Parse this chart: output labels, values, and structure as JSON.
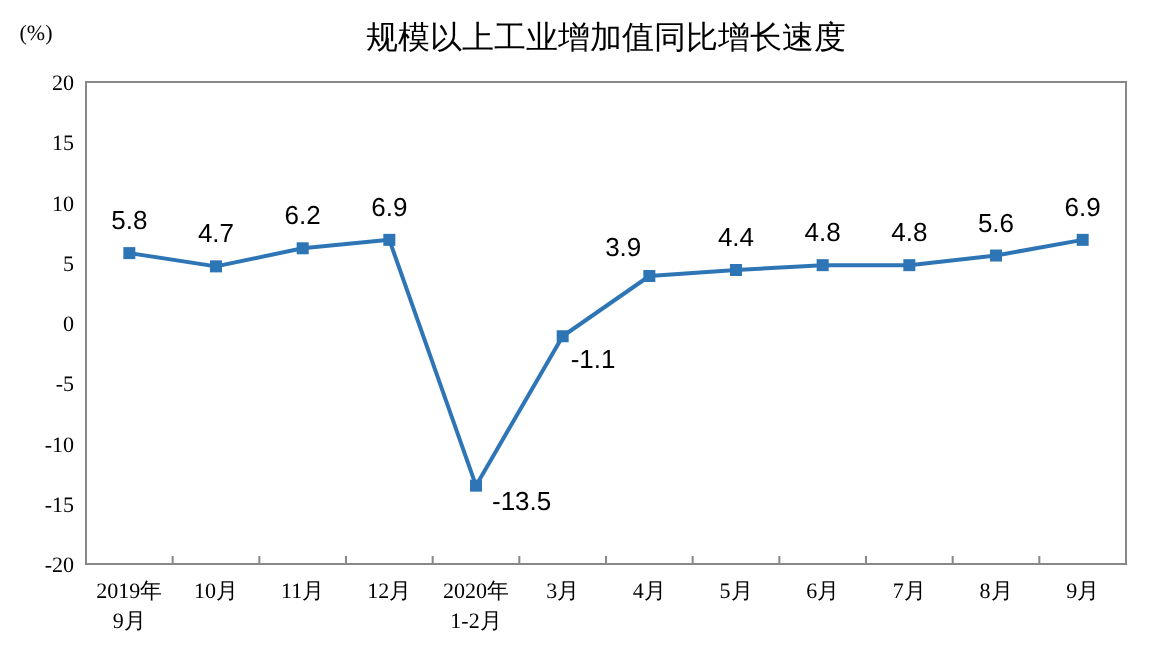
{
  "chart_data": {
    "type": "line",
    "title": "规模以上工业增加值同比增长速度",
    "ylabel": "(%)",
    "categories": [
      "2019年\n9月",
      "10月",
      "11月",
      "12月",
      "2020年\n1-2月",
      "3月",
      "4月",
      "5月",
      "6月",
      "7月",
      "8月",
      "9月"
    ],
    "series": [
      {
        "color": "#2e75b6",
        "values": [
          5.8,
          4.7,
          6.2,
          6.9,
          -13.5,
          -1.1,
          3.9,
          4.4,
          4.8,
          4.8,
          5.6,
          6.9
        ]
      }
    ],
    "ylim": [
      -20,
      20
    ],
    "yticks": [
      -20,
      -15,
      -10,
      -5,
      0,
      5,
      10,
      15,
      20
    ],
    "grid": false,
    "marker": "square",
    "line_style": "solid",
    "data_labels": true
  }
}
